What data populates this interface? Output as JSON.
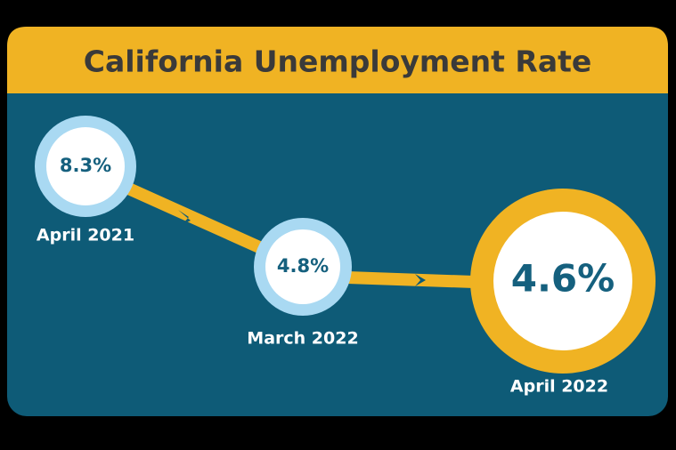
{
  "title": "California Unemployment Rate",
  "nodes": [
    {
      "value": "8.3%",
      "label": "April 2021"
    },
    {
      "value": "4.8%",
      "label": "March 2022"
    },
    {
      "value": "4.6%",
      "label": "April 2022"
    }
  ]
}
